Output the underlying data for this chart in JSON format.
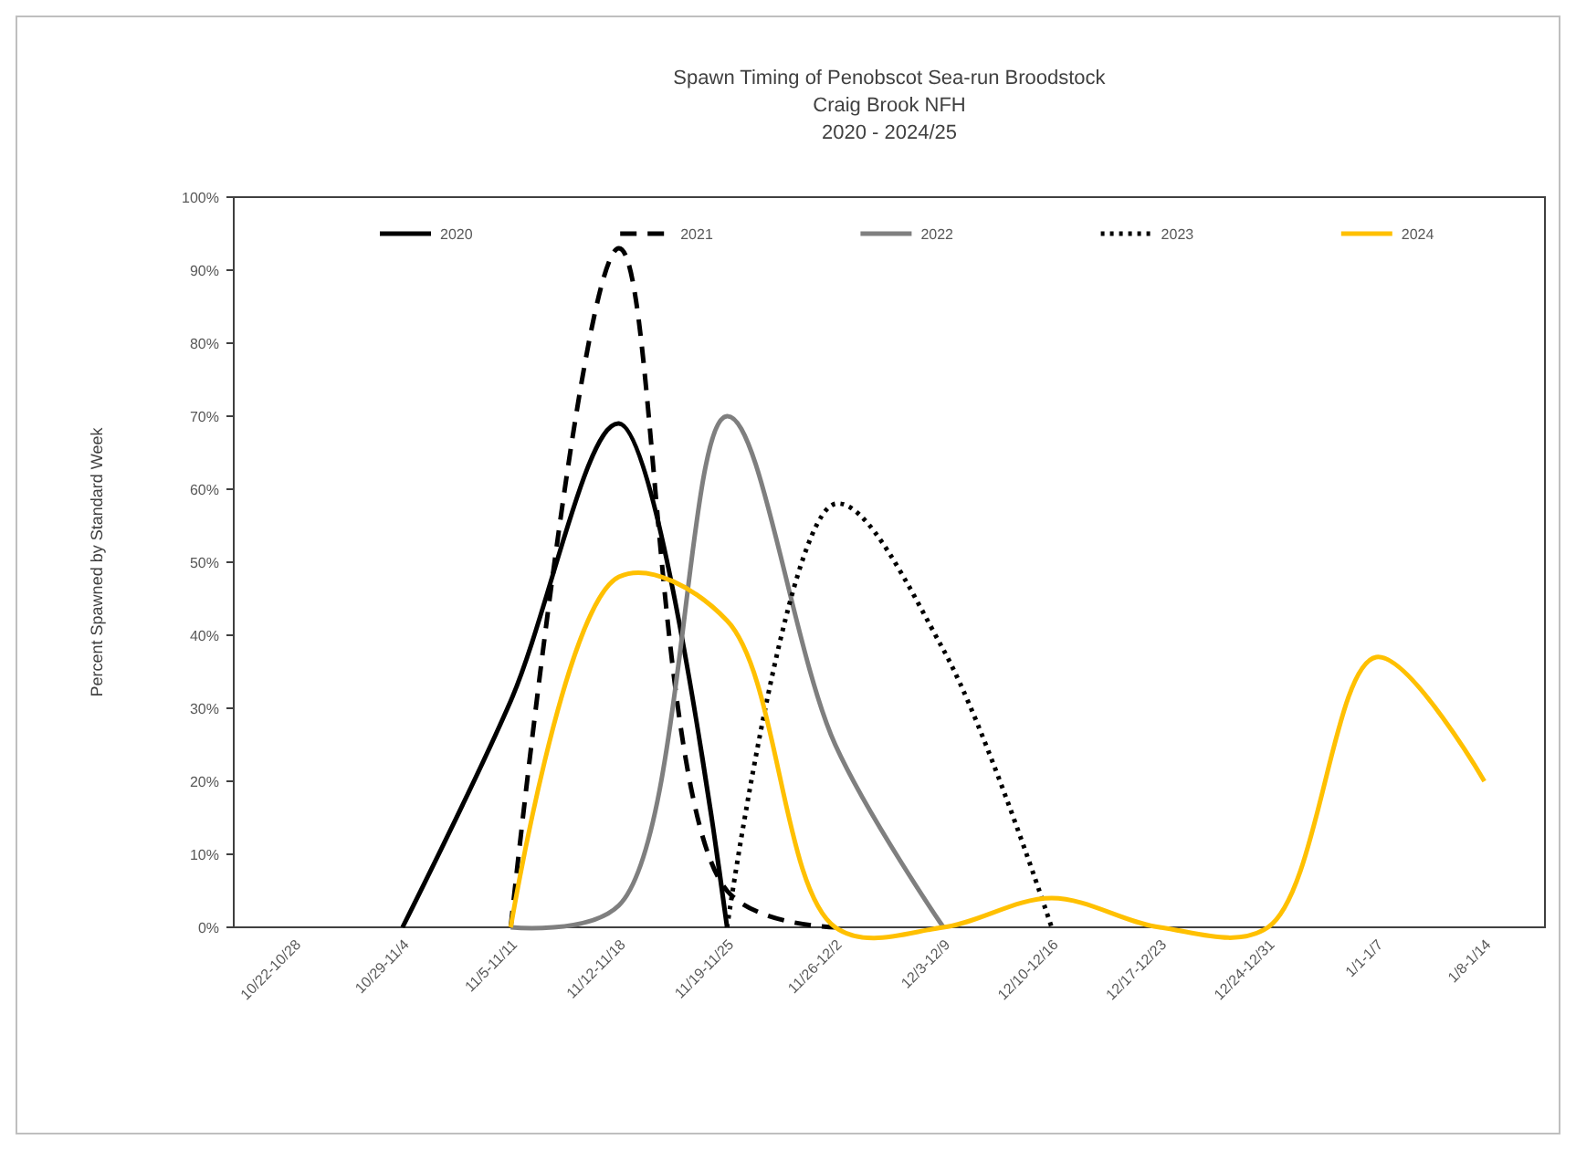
{
  "chart_data": {
    "type": "line",
    "title": "Spawn Timing of Penobscot Sea-run Broodstock",
    "subtitle": "Craig Brook NFH\n2020 - 2024/25",
    "ylabel": "Percent Spawned by Standard Week",
    "categories": [
      "10/22-10/28",
      "10/29-11/4",
      "11/5-11/11",
      "11/12-11/18",
      "11/19-11/25",
      "11/26-12/2",
      "12/3-12/9",
      "12/10-12/16",
      "12/17-12/23",
      "12/24-12/31",
      "1/1-1/7",
      "1/8-1/14"
    ],
    "series": [
      {
        "name": "2020",
        "color": "#000000",
        "line_style": "solid",
        "values": [
          null,
          0,
          31,
          69,
          0,
          null,
          null,
          null,
          null,
          null,
          null,
          null
        ]
      },
      {
        "name": "2021",
        "color": "#000000",
        "line_style": "dashed",
        "values": [
          null,
          null,
          0,
          93,
          5,
          0,
          null,
          null,
          null,
          null,
          null,
          null
        ]
      },
      {
        "name": "2022",
        "color": "#7f7f7f",
        "line_style": "solid",
        "values": [
          null,
          null,
          0,
          3,
          70,
          25,
          0,
          null,
          null,
          null,
          null,
          null
        ]
      },
      {
        "name": "2023",
        "color": "#000000",
        "line_style": "dotted",
        "values": [
          null,
          null,
          null,
          null,
          0,
          58,
          38,
          0,
          null,
          null,
          null,
          null
        ]
      },
      {
        "name": "2024",
        "color": "#ffc000",
        "line_style": "solid",
        "values": [
          null,
          null,
          0,
          48,
          42,
          0,
          0,
          4,
          0,
          0,
          37,
          20
        ]
      }
    ],
    "ylim": [
      0,
      100
    ],
    "yticks": [
      {
        "value": 0,
        "label": "0%"
      },
      {
        "value": 10,
        "label": "10%"
      },
      {
        "value": 20,
        "label": "20%"
      },
      {
        "value": 30,
        "label": "30%"
      },
      {
        "value": 40,
        "label": "40%"
      },
      {
        "value": 50,
        "label": "50%"
      },
      {
        "value": 60,
        "label": "60%"
      },
      {
        "value": 70,
        "label": "70%"
      },
      {
        "value": 80,
        "label": "80%"
      },
      {
        "value": 90,
        "label": "90%"
      },
      {
        "value": 100,
        "label": "100%"
      }
    ],
    "grid": false,
    "legend": "top"
  }
}
